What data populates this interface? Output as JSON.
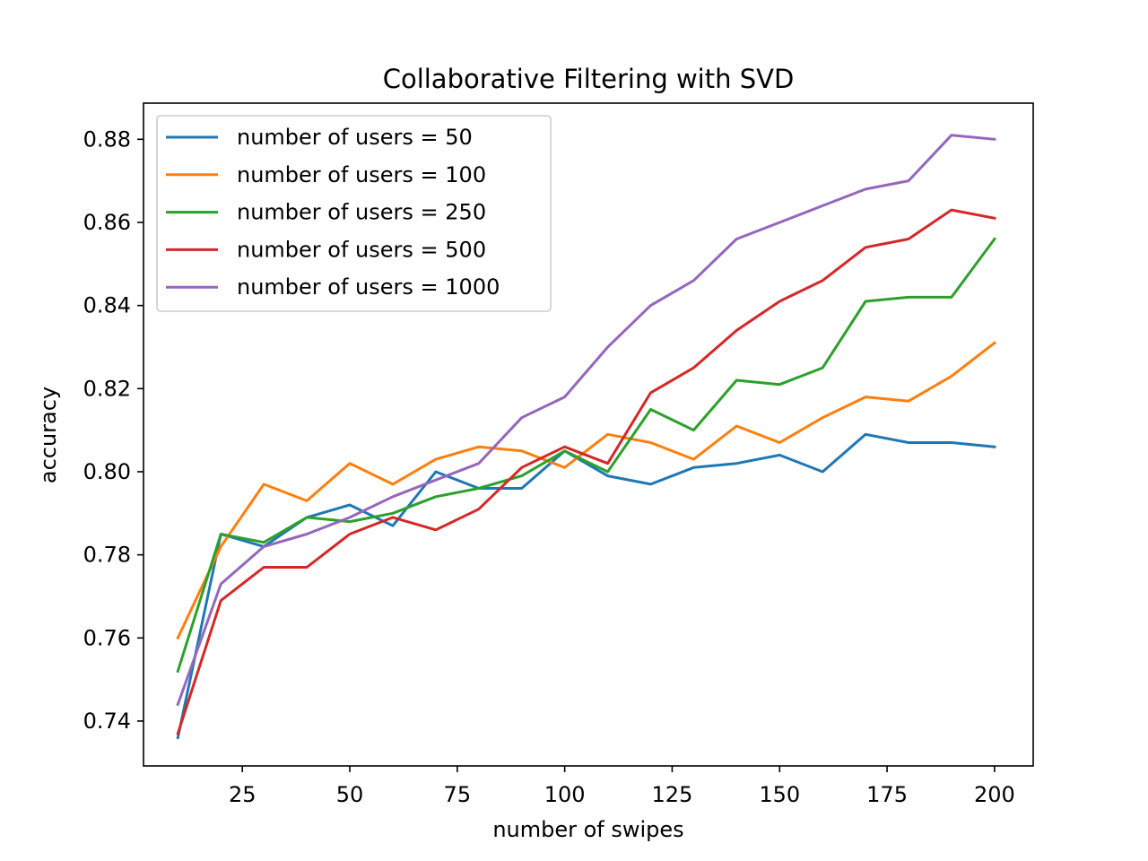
{
  "chart_data": {
    "type": "line",
    "title": "Collaborative Filtering with SVD",
    "xlabel": "number of swipes",
    "ylabel": "accuracy",
    "xlim": [
      2,
      209
    ],
    "ylim": [
      0.7292,
      0.8887
    ],
    "xticks": [
      25,
      50,
      75,
      100,
      125,
      150,
      175,
      200
    ],
    "xtick_labels": [
      "25",
      "50",
      "75",
      "100",
      "125",
      "150",
      "175",
      "200"
    ],
    "yticks": [
      0.74,
      0.76,
      0.78,
      0.8,
      0.82,
      0.84,
      0.86,
      0.88
    ],
    "ytick_labels": [
      "0.74",
      "0.76",
      "0.78",
      "0.80",
      "0.82",
      "0.84",
      "0.86",
      "0.88"
    ],
    "legend_position": "top-left",
    "x": [
      10,
      20,
      30,
      40,
      50,
      60,
      70,
      80,
      90,
      100,
      110,
      120,
      130,
      140,
      150,
      160,
      170,
      180,
      190,
      200
    ],
    "series": [
      {
        "name": "number of users = 50",
        "color": "#1f77b4",
        "values": [
          0.736,
          0.785,
          0.782,
          0.789,
          0.792,
          0.787,
          0.8,
          0.796,
          0.796,
          0.805,
          0.799,
          0.797,
          0.801,
          0.802,
          0.804,
          0.8,
          0.809,
          0.807,
          0.807,
          0.806
        ]
      },
      {
        "name": "number of users = 100",
        "color": "#ff7f0e",
        "values": [
          0.76,
          0.782,
          0.797,
          0.793,
          0.802,
          0.797,
          0.803,
          0.806,
          0.805,
          0.801,
          0.809,
          0.807,
          0.803,
          0.811,
          0.807,
          0.813,
          0.818,
          0.817,
          0.823,
          0.831
        ]
      },
      {
        "name": "number of users = 250",
        "color": "#2ca02c",
        "values": [
          0.752,
          0.785,
          0.783,
          0.789,
          0.788,
          0.79,
          0.794,
          0.796,
          0.799,
          0.805,
          0.8,
          0.815,
          0.81,
          0.822,
          0.821,
          0.825,
          0.841,
          0.842,
          0.842,
          0.856
        ]
      },
      {
        "name": "number of users = 500",
        "color": "#d62728",
        "values": [
          0.737,
          0.769,
          0.777,
          0.777,
          0.785,
          0.789,
          0.786,
          0.791,
          0.801,
          0.806,
          0.802,
          0.819,
          0.825,
          0.834,
          0.841,
          0.846,
          0.854,
          0.856,
          0.863,
          0.861
        ]
      },
      {
        "name": "number of users = 1000",
        "color": "#9467bd",
        "values": [
          0.744,
          0.773,
          0.782,
          0.785,
          0.789,
          0.794,
          0.798,
          0.802,
          0.813,
          0.818,
          0.83,
          0.84,
          0.846,
          0.856,
          0.86,
          0.864,
          0.868,
          0.87,
          0.881,
          0.88
        ]
      }
    ]
  }
}
